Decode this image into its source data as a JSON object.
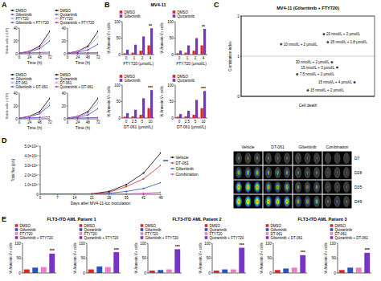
{
  "panel_labels": [
    "A",
    "B",
    "C",
    "D",
    "E"
  ],
  "chart_data": [
    {
      "type": "line",
      "x_label": "Time (h)",
      "y_label": "Viable cells (×10⁵)",
      "x": [
        0,
        24,
        48,
        72
      ],
      "xlim": [
        0,
        72
      ],
      "xticks": [
        0,
        24,
        48,
        72
      ],
      "ylim": [
        0,
        40
      ],
      "yticks": [
        0,
        20,
        40
      ],
      "legend": "top-left",
      "marker": "circle",
      "series": [
        {
          "name": "DMSO",
          "color": "#000000",
          "values": [
            1,
            4,
            12,
            35
          ]
        },
        {
          "name": "Gilteritinib",
          "color": "#2a52be",
          "values": [
            1,
            3,
            8,
            20
          ]
        },
        {
          "name": "FTY720",
          "color": "#e87fc3",
          "values": [
            1,
            3.5,
            10,
            27
          ]
        },
        {
          "name": "Gilteritinib + FTY720",
          "color": "#7a33c9",
          "values": [
            1,
            1.5,
            2,
            2.5
          ]
        }
      ]
    },
    {
      "type": "line",
      "x_label": "Time (h)",
      "x": [
        0,
        24,
        48,
        72
      ],
      "xlim": [
        0,
        72
      ],
      "xticks": [
        0,
        24,
        48,
        72
      ],
      "ylim": [
        0,
        40
      ],
      "yticks": [
        0,
        20,
        40
      ],
      "legend": "top-left",
      "marker": "circle",
      "series": [
        {
          "name": "DMSO",
          "color": "#000000",
          "values": [
            1,
            4,
            12,
            35
          ]
        },
        {
          "name": "Quizartinib",
          "color": "#2a52be",
          "values": [
            1,
            2.5,
            6,
            15
          ]
        },
        {
          "name": "FTY720",
          "color": "#e87fc3",
          "values": [
            1,
            3.5,
            10,
            27
          ]
        },
        {
          "name": "Quizartinib + FTY720",
          "color": "#7a33c9",
          "values": [
            1,
            1.2,
            1.5,
            1.8
          ]
        }
      ]
    },
    {
      "type": "line",
      "x_label": "Time (h)",
      "y_label": "Viable cells (×10⁵)",
      "x": [
        0,
        24,
        48,
        72
      ],
      "xlim": [
        0,
        72
      ],
      "xticks": [
        0,
        24,
        48,
        72
      ],
      "ylim": [
        0,
        40
      ],
      "yticks": [
        0,
        20,
        40
      ],
      "legend": "top-left",
      "marker": "circle",
      "series": [
        {
          "name": "DMSO",
          "color": "#000000",
          "values": [
            1,
            4,
            11,
            32
          ]
        },
        {
          "name": "Gilteritinib",
          "color": "#2a52be",
          "values": [
            1,
            3,
            8,
            21
          ]
        },
        {
          "name": "DT-061",
          "color": "#e87fc3",
          "values": [
            1,
            3.5,
            9,
            25
          ]
        },
        {
          "name": "Gilteritinib + DT-061",
          "color": "#7a33c9",
          "values": [
            1,
            1.5,
            2.2,
            3
          ]
        }
      ]
    },
    {
      "type": "line",
      "x_label": "Time (h)",
      "x": [
        0,
        24,
        48,
        72
      ],
      "xlim": [
        0,
        72
      ],
      "xticks": [
        0,
        24,
        48,
        72
      ],
      "ylim": [
        0,
        40
      ],
      "yticks": [
        0,
        20,
        40
      ],
      "legend": "top-left",
      "marker": "circle",
      "series": [
        {
          "name": "DMSO",
          "color": "#000000",
          "values": [
            1,
            4,
            11,
            32
          ]
        },
        {
          "name": "Quizartinib",
          "color": "#2a52be",
          "values": [
            1,
            2.5,
            6,
            16
          ]
        },
        {
          "name": "DT-061",
          "color": "#e87fc3",
          "values": [
            1,
            3.5,
            9,
            25
          ]
        },
        {
          "name": "Quizartinib + DT-061",
          "color": "#7a33c9",
          "values": [
            1,
            1.3,
            1.6,
            2
          ]
        }
      ]
    },
    {
      "type": "bar",
      "title": "MV4-11",
      "x_label": "FTY720 (μmol/L)",
      "y_label": "% Annexin V+ cells",
      "categories": [
        "0",
        "1",
        "2",
        "4"
      ],
      "ylim": [
        0,
        100
      ],
      "yticks": [
        0,
        50,
        100
      ],
      "legend": "top-left",
      "annotations": [
        "**"
      ],
      "series": [
        {
          "name": "DMSO",
          "color": "#e0242a",
          "values": [
            4,
            6,
            12,
            28
          ]
        },
        {
          "name": "Gilteritinib",
          "color": "#7a33c9",
          "values": [
            15,
            30,
            55,
            80
          ]
        }
      ]
    },
    {
      "type": "bar",
      "x_label": "FTY720 (μmol/L)",
      "y_label": "% Annexin V+ cells",
      "categories": [
        "0",
        "1",
        "2",
        "4"
      ],
      "ylim": [
        0,
        100
      ],
      "yticks": [
        0,
        50,
        100
      ],
      "legend": "top-left",
      "annotations": [
        "**"
      ],
      "series": [
        {
          "name": "DMSO",
          "color": "#e0242a",
          "values": [
            4,
            6,
            12,
            28
          ]
        },
        {
          "name": "Quizartinib",
          "color": "#7a33c9",
          "values": [
            12,
            28,
            50,
            78
          ]
        }
      ]
    },
    {
      "type": "bar",
      "x_label": "DT-061 (μmol/L)",
      "y_label": "% Annexin V+ cells",
      "categories": [
        "0",
        "2.5",
        "5",
        "10"
      ],
      "ylim": [
        0,
        100
      ],
      "yticks": [
        0,
        50,
        100
      ],
      "legend": "top-left",
      "annotations": [
        "***"
      ],
      "series": [
        {
          "name": "DMSO",
          "color": "#e0242a",
          "values": [
            4,
            5,
            10,
            30
          ]
        },
        {
          "name": "Gilteritinib",
          "color": "#7a33c9",
          "values": [
            15,
            25,
            60,
            85
          ]
        }
      ]
    },
    {
      "type": "bar",
      "x_label": "DT-061 (μmol/L)",
      "y_label": "% Annexin V+ cells",
      "categories": [
        "0",
        "2.5",
        "5",
        "10"
      ],
      "ylim": [
        0,
        100
      ],
      "yticks": [
        0,
        50,
        100
      ],
      "legend": "top-left",
      "annotations": [
        "***"
      ],
      "series": [
        {
          "name": "DMSO",
          "color": "#e0242a",
          "values": [
            4,
            5,
            10,
            30
          ]
        },
        {
          "name": "Quizartinib",
          "color": "#7a33c9",
          "values": [
            12,
            22,
            55,
            82
          ]
        }
      ]
    },
    {
      "type": "scatter",
      "title": "MV4-11 (Gilteritinib + FTY720)",
      "x_label": "Cell death",
      "y_label": "Combination index",
      "color": "#444444",
      "grid": true,
      "tick_labels": "y",
      "xlim": [
        0,
        100
      ],
      "ylim": [
        0,
        2
      ],
      "yticks": [
        0,
        1,
        2
      ],
      "x": [
        30,
        62,
        65,
        68,
        72,
        42,
        85,
        50
      ],
      "values": [
        1.3,
        1.55,
        1.35,
        0.85,
        0.72,
        0.55,
        0.35,
        0.15
      ],
      "point_labels": [
        "10 nmol/L + 2 μmol/L",
        "20 nmol/L + 2 μmol/L",
        "15 nmol/L + 1.8 μmol/L",
        "30 nmol/L + 2 μmol/L",
        "15 nmol/L + 3 μmol/L",
        "7.5 nmol/L + 2 μmol/L",
        "15 nmol/L + 4 μmol/L",
        "15 nmol/L + 2 μmol/L"
      ]
    },
    {
      "type": "line",
      "x_label": "Days after MV4-11-luc inoculation",
      "y_label": "Total flux (p/s)",
      "x": [
        0,
        7,
        14,
        21,
        28,
        35,
        42,
        49
      ],
      "xlim": [
        0,
        49
      ],
      "xticks": [
        0,
        7,
        14,
        21,
        28,
        35,
        42,
        49
      ],
      "ylim": [
        0,
        50000000000
      ],
      "yticks": [
        0,
        {
          "value": 10000000000,
          "label": "1.0×10¹⁰"
        },
        {
          "value": 20000000000,
          "label": "2.0×10¹⁰"
        },
        {
          "value": 30000000000,
          "label": "3.0×10¹⁰"
        },
        {
          "value": 40000000000,
          "label": "4.0×10¹⁰"
        },
        {
          "value": 50000000000,
          "label": "5.0×10¹⁰"
        }
      ],
      "legend": "right",
      "marker": "circle",
      "annotations": [
        "***"
      ],
      "series": [
        {
          "name": "Vehicle",
          "color": "#000000",
          "values": [
            0,
            10000000,
            200000000,
            500000000,
            3000000000,
            10000000000,
            22000000000,
            43000000000
          ]
        },
        {
          "name": "DT-061",
          "color": "#e0242a",
          "values": [
            0,
            10000000,
            150000000,
            400000000,
            2000000000,
            8000000000,
            16000000000,
            30000000000
          ]
        },
        {
          "name": "Gilteritinib",
          "color": "#2a52be",
          "values": [
            0,
            5000000,
            100000000,
            200000000,
            1000000000,
            3000000000,
            6000000000,
            12000000000
          ]
        },
        {
          "name": "Combination",
          "color": "#c040c0",
          "values": [
            0,
            0,
            50000000,
            100000000,
            200000000,
            500000000,
            1000000000,
            2000000000
          ]
        }
      ]
    },
    {
      "type": "bar",
      "title": "FLT3-ITD AML Patient 1",
      "y_label": "% Annexin V+ cells",
      "categories": [
        "DMSO",
        "Gilteritinib",
        "FTY720",
        "Gilteritinib + FTY720"
      ],
      "values": [
        12,
        18,
        20,
        65
      ],
      "colors": [
        "#e0242a",
        "#2a52be",
        "#e87fc3",
        "#7a33c9"
      ],
      "ylim": [
        0,
        100
      ],
      "yticks": [
        0,
        50,
        100
      ],
      "legend": "top-left",
      "tick_labels": "y",
      "annotations": [
        "***"
      ]
    },
    {
      "type": "bar",
      "y_label": "% Annexin V+ cells",
      "categories": [
        "DMSO",
        "Quizartinib",
        "FTY720",
        "Quizartinib + FTY720"
      ],
      "values": [
        12,
        22,
        20,
        70
      ],
      "colors": [
        "#e0242a",
        "#2a52be",
        "#e87fc3",
        "#7a33c9"
      ],
      "ylim": [
        0,
        100
      ],
      "yticks": [
        0,
        50,
        100
      ],
      "legend": "top-left",
      "tick_labels": "y",
      "annotations": [
        "***"
      ]
    },
    {
      "type": "bar",
      "title": "FLT3-ITD AML Patient 2",
      "y_label": "% Annexin V+ cells",
      "categories": [
        "DMSO",
        "Gilteritinib",
        "FTY720",
        "Gilteritinib + FTY720"
      ],
      "values": [
        8,
        10,
        12,
        80
      ],
      "colors": [
        "#e0242a",
        "#2a52be",
        "#e87fc3",
        "#7a33c9"
      ],
      "ylim": [
        0,
        100
      ],
      "yticks": [
        0,
        50,
        100
      ],
      "legend": "top-left",
      "tick_labels": "y",
      "annotations": [
        "***"
      ]
    },
    {
      "type": "bar",
      "y_label": "% Annexin V+ cells",
      "categories": [
        "DMSO",
        "Quizartinib",
        "FTY720",
        "Quizartinib + FTY720"
      ],
      "values": [
        8,
        12,
        12,
        85
      ],
      "colors": [
        "#e0242a",
        "#2a52be",
        "#e87fc3",
        "#7a33c9"
      ],
      "ylim": [
        0,
        100
      ],
      "yticks": [
        0,
        50,
        100
      ],
      "legend": "top-left",
      "tick_labels": "y",
      "annotations": [
        "***"
      ]
    },
    {
      "type": "bar",
      "title": "FLT3-ITD AML Patient 3",
      "y_label": "% Annexin V+ cells",
      "categories": [
        "DMSO",
        "Gilteritinib",
        "DT-061",
        "Gilteritinib + DT-061"
      ],
      "values": [
        10,
        15,
        18,
        60
      ],
      "colors": [
        "#e0242a",
        "#2a52be",
        "#e87fc3",
        "#7a33c9"
      ],
      "ylim": [
        0,
        100
      ],
      "yticks": [
        0,
        50,
        100
      ],
      "legend": "top-left",
      "tick_labels": "y",
      "annotations": [
        "***"
      ]
    },
    {
      "type": "bar",
      "y_label": "% Annexin V+ cells",
      "categories": [
        "DMSO",
        "Quizartinib",
        "DT-061",
        "Quizartinib + DT-061"
      ],
      "values": [
        10,
        18,
        18,
        68
      ],
      "colors": [
        "#e0242a",
        "#2a52be",
        "#e87fc3",
        "#7a33c9"
      ],
      "ylim": [
        0,
        100
      ],
      "yticks": [
        0,
        50,
        100
      ],
      "legend": "top-left",
      "tick_labels": "y",
      "annotations": [
        "***"
      ]
    }
  ],
  "images": {
    "columns": [
      "Vehicle",
      "DT-061",
      "Gilteritinib",
      "Combination"
    ],
    "rows": [
      "D7",
      "D28",
      "D35",
      "D49"
    ]
  }
}
